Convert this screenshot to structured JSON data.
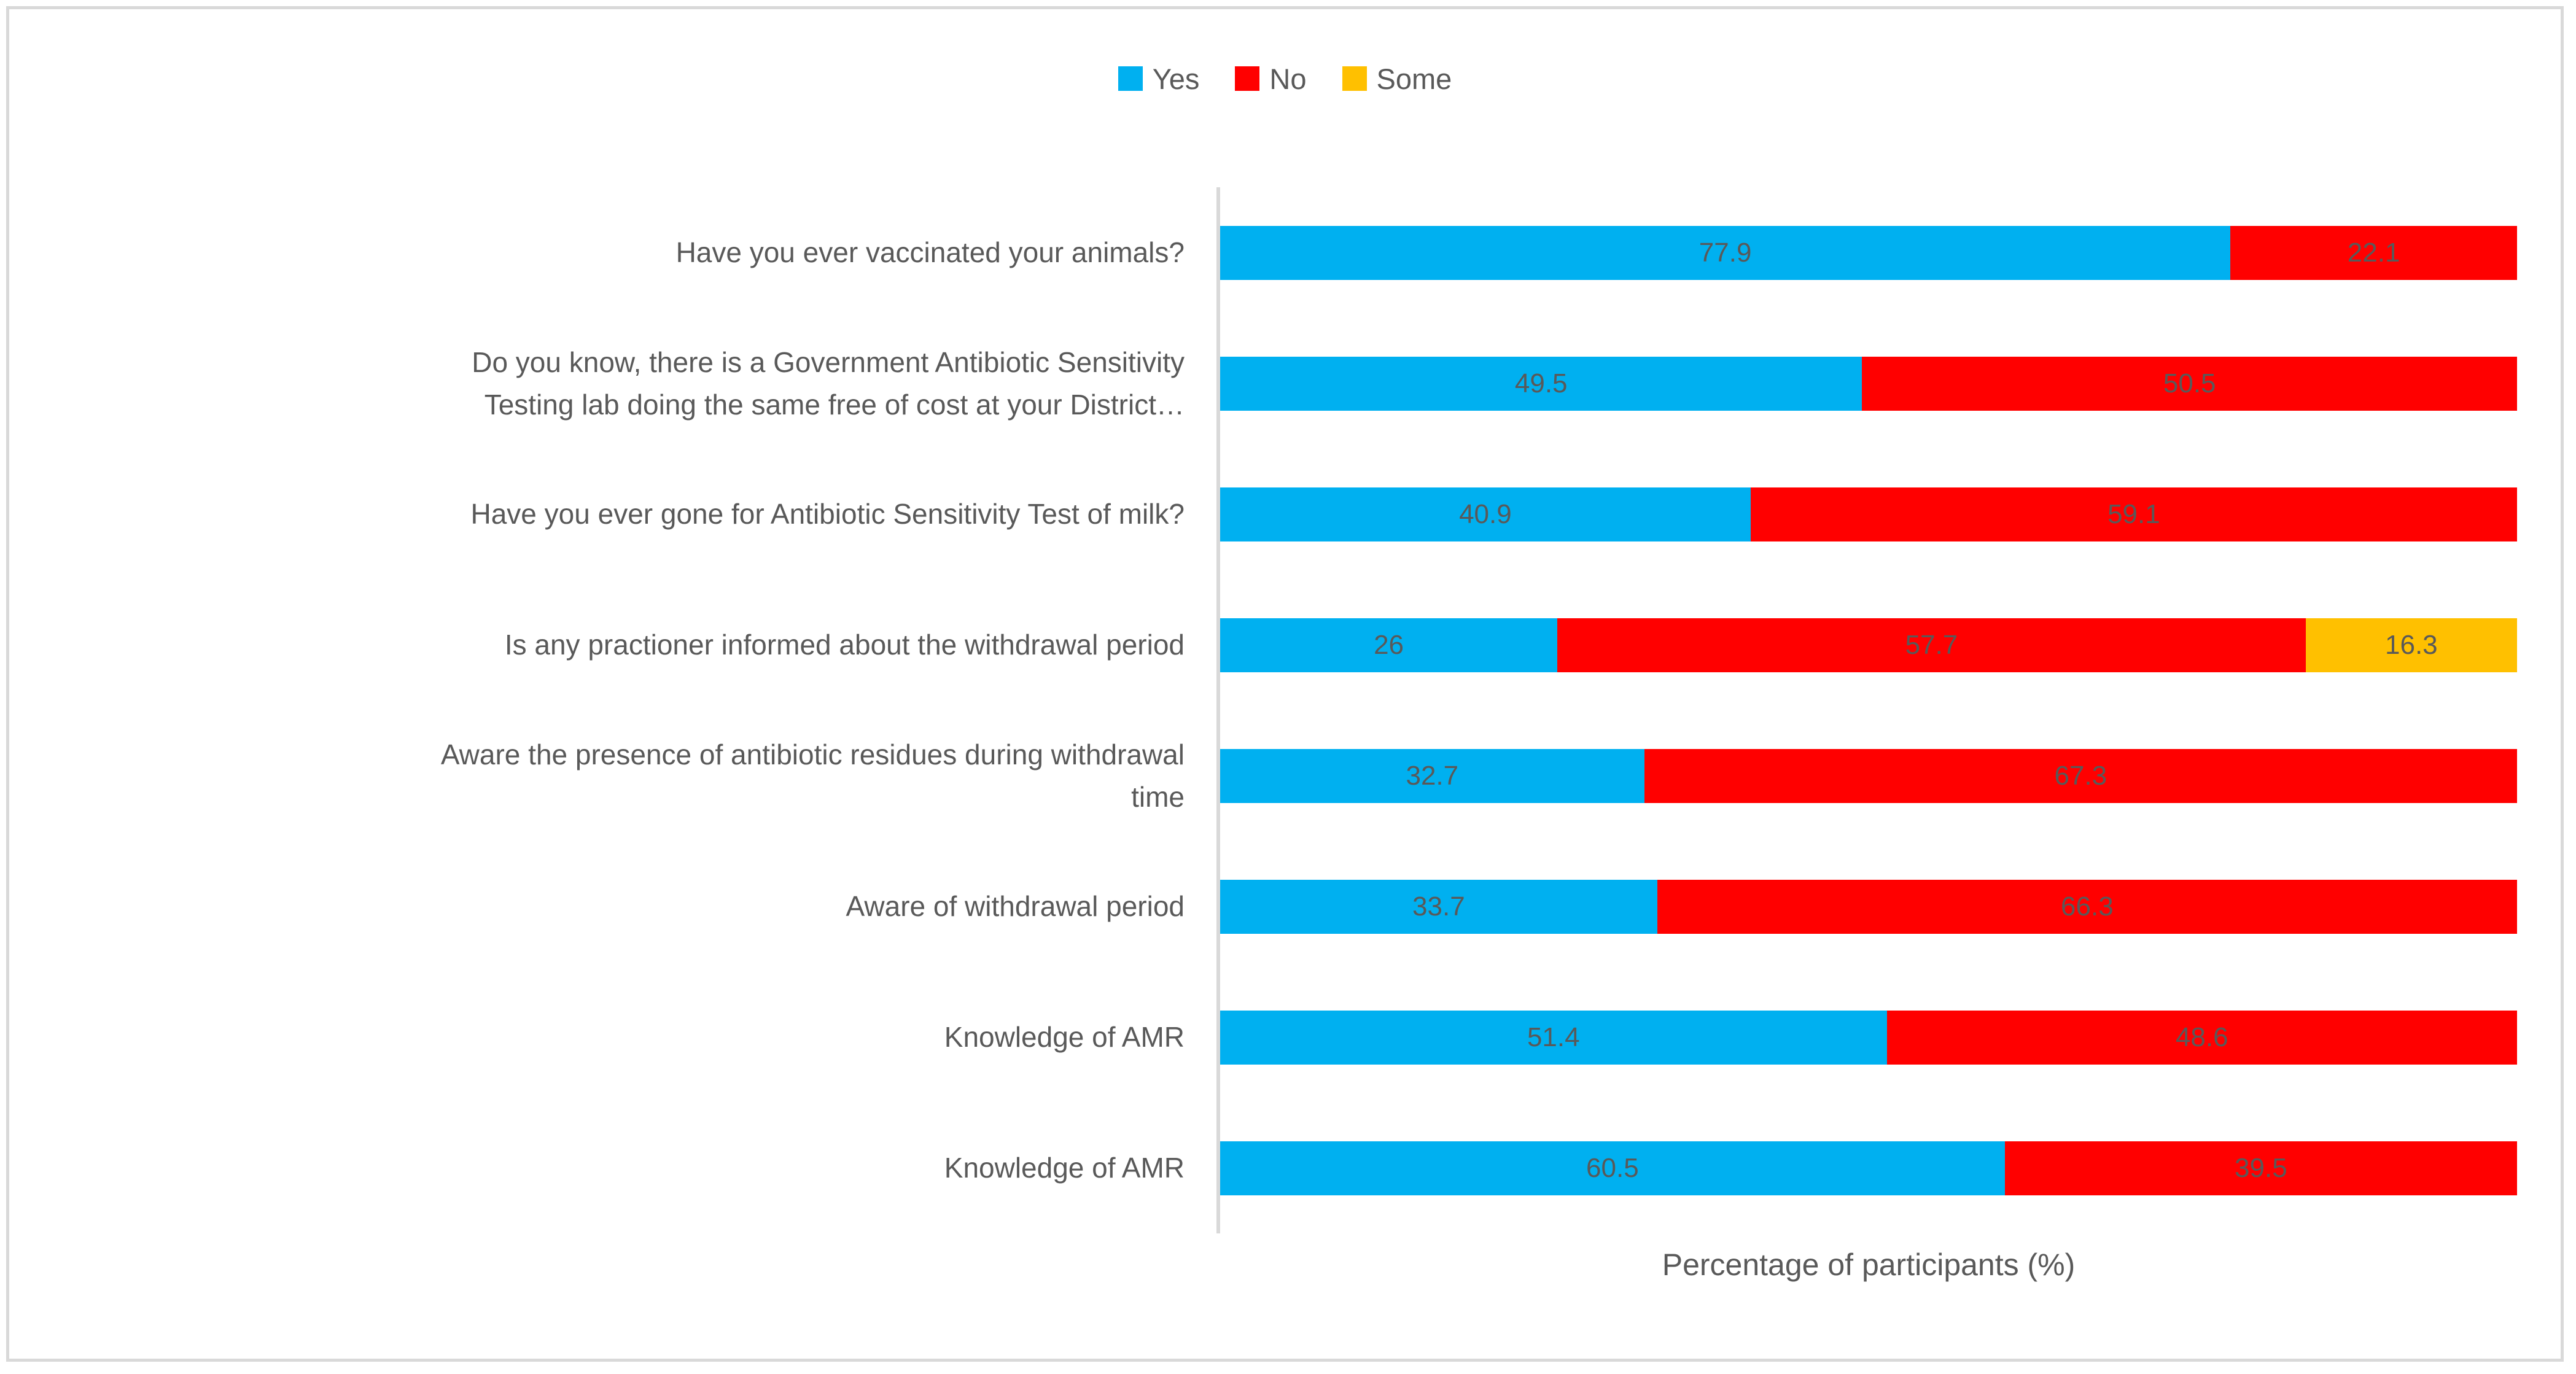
{
  "colors": {
    "axis_line": "#D9D9D9",
    "figure_border": "#D9D9D9",
    "text": "#595959"
  },
  "chart_data": {
    "type": "bar",
    "stacked": true,
    "orientation": "horizontal",
    "title": "",
    "xlabel": "Percentage of participants (%)",
    "ylabel": "",
    "xlim": [
      0,
      100
    ],
    "grid": false,
    "legend_position": "top",
    "categories": [
      "Have you ever vaccinated your animals?",
      "Do you know, there is a Government Antibiotic Sensitivity\nTesting lab doing the same free of cost at your District…",
      "Have you ever gone for Antibiotic Sensitivity Test of milk?",
      "Is any practioner informed about the withdrawal period",
      "Aware the presence of antibiotic residues during withdrawal\ntime",
      "Aware of withdrawal period",
      "Knowledge of AMR",
      "Knowledge of AMR"
    ],
    "series": [
      {
        "name": "Yes",
        "color": "#00B0F0",
        "values": [
          77.9,
          49.5,
          40.9,
          26,
          32.7,
          33.7,
          51.4,
          60.5
        ]
      },
      {
        "name": "No",
        "color": "#FF0000",
        "values": [
          22.1,
          50.5,
          59.1,
          57.7,
          67.3,
          66.3,
          48.6,
          39.5
        ]
      },
      {
        "name": "Some",
        "color": "#FFC000",
        "values": [
          0,
          0,
          0,
          16.3,
          0,
          0,
          0,
          0
        ]
      }
    ]
  }
}
